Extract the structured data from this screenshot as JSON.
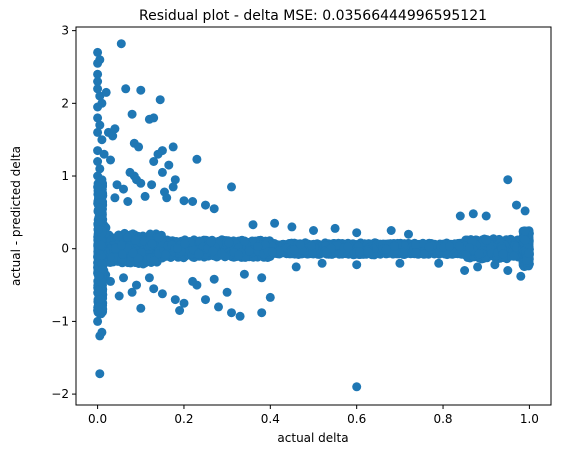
{
  "chart_data": {
    "type": "scatter",
    "title": "Residual plot - delta MSE: 0.03566444996595121",
    "xlabel": "actual delta",
    "ylabel": "actual - predicted delta",
    "xlim": [
      -0.05,
      1.05
    ],
    "ylim": [
      -2.15,
      3.05
    ],
    "xticks": [
      0.0,
      0.2,
      0.4,
      0.6,
      0.8,
      1.0
    ],
    "xtick_labels": [
      "0.0",
      "0.2",
      "0.4",
      "0.6",
      "0.8",
      "1.0"
    ],
    "yticks": [
      -2,
      -1,
      0,
      1,
      2,
      3
    ],
    "ytick_labels": [
      "−2",
      "−1",
      "0",
      "1",
      "2",
      "3"
    ],
    "grid": false,
    "color": "#1f77b4",
    "points": [
      {
        "x": 0.0,
        "y": 2.7
      },
      {
        "x": 0.0,
        "y": 2.55
      },
      {
        "x": 0.0,
        "y": 2.4
      },
      {
        "x": 0.005,
        "y": 2.6
      },
      {
        "x": 0.055,
        "y": 2.82
      },
      {
        "x": 0.0,
        "y": 2.3
      },
      {
        "x": 0.0,
        "y": 2.2
      },
      {
        "x": 0.005,
        "y": 2.1
      },
      {
        "x": 0.02,
        "y": 2.15
      },
      {
        "x": 0.01,
        "y": 2.0
      },
      {
        "x": 0.0,
        "y": 1.95
      },
      {
        "x": 0.0,
        "y": 1.8
      },
      {
        "x": 0.005,
        "y": 1.7
      },
      {
        "x": 0.0,
        "y": 1.6
      },
      {
        "x": 0.01,
        "y": 1.5
      },
      {
        "x": 0.025,
        "y": 1.6
      },
      {
        "x": 0.035,
        "y": 1.55
      },
      {
        "x": 0.0,
        "y": 1.35
      },
      {
        "x": 0.015,
        "y": 1.3
      },
      {
        "x": 0.0,
        "y": 1.2
      },
      {
        "x": 0.005,
        "y": 1.1
      },
      {
        "x": 0.0,
        "y": 1.0
      },
      {
        "x": 0.01,
        "y": 0.95
      },
      {
        "x": 0.0,
        "y": 0.85
      },
      {
        "x": 0.065,
        "y": 2.2
      },
      {
        "x": 0.1,
        "y": 2.18
      },
      {
        "x": 0.145,
        "y": 2.05
      },
      {
        "x": 0.08,
        "y": 1.85
      },
      {
        "x": 0.12,
        "y": 1.78
      },
      {
        "x": 0.13,
        "y": 1.8
      },
      {
        "x": 0.03,
        "y": 1.22
      },
      {
        "x": 0.04,
        "y": 1.65
      },
      {
        "x": 0.085,
        "y": 1.45
      },
      {
        "x": 0.095,
        "y": 1.4
      },
      {
        "x": 0.14,
        "y": 1.3
      },
      {
        "x": 0.15,
        "y": 1.35
      },
      {
        "x": 0.175,
        "y": 1.4
      },
      {
        "x": 0.13,
        "y": 1.2
      },
      {
        "x": 0.165,
        "y": 1.15
      },
      {
        "x": 0.23,
        "y": 1.23
      },
      {
        "x": 0.075,
        "y": 1.05
      },
      {
        "x": 0.085,
        "y": 1.0
      },
      {
        "x": 0.09,
        "y": 0.95
      },
      {
        "x": 0.1,
        "y": 0.9
      },
      {
        "x": 0.15,
        "y": 1.05
      },
      {
        "x": 0.18,
        "y": 0.95
      },
      {
        "x": 0.045,
        "y": 0.88
      },
      {
        "x": 0.06,
        "y": 0.82
      },
      {
        "x": 0.125,
        "y": 0.88
      },
      {
        "x": 0.155,
        "y": 0.78
      },
      {
        "x": 0.175,
        "y": 0.85
      },
      {
        "x": 0.31,
        "y": 0.85
      },
      {
        "x": 0.11,
        "y": 0.72
      },
      {
        "x": 0.16,
        "y": 0.7
      },
      {
        "x": 0.2,
        "y": 0.66
      },
      {
        "x": 0.22,
        "y": 0.65
      },
      {
        "x": 0.07,
        "y": 0.65
      },
      {
        "x": 0.04,
        "y": 0.7
      },
      {
        "x": 0.25,
        "y": 0.6
      },
      {
        "x": 0.27,
        "y": 0.55
      },
      {
        "x": 0.95,
        "y": 0.95
      },
      {
        "x": 0.97,
        "y": 0.6
      },
      {
        "x": 0.99,
        "y": 0.52
      },
      {
        "x": 0.87,
        "y": 0.48
      },
      {
        "x": 0.9,
        "y": 0.45
      },
      {
        "x": 0.84,
        "y": 0.45
      },
      {
        "x": 0.0,
        "y": -0.85
      },
      {
        "x": 0.0,
        "y": -1.0
      },
      {
        "x": 0.005,
        "y": -1.2
      },
      {
        "x": 0.01,
        "y": -1.15
      },
      {
        "x": 0.005,
        "y": -1.72
      },
      {
        "x": 0.6,
        "y": -1.9
      },
      {
        "x": 0.1,
        "y": -0.82
      },
      {
        "x": 0.05,
        "y": -0.65
      },
      {
        "x": 0.08,
        "y": -0.6
      },
      {
        "x": 0.09,
        "y": -0.5
      },
      {
        "x": 0.13,
        "y": -0.55
      },
      {
        "x": 0.15,
        "y": -0.62
      },
      {
        "x": 0.18,
        "y": -0.7
      },
      {
        "x": 0.19,
        "y": -0.85
      },
      {
        "x": 0.2,
        "y": -0.75
      },
      {
        "x": 0.25,
        "y": -0.7
      },
      {
        "x": 0.28,
        "y": -0.8
      },
      {
        "x": 0.31,
        "y": -0.88
      },
      {
        "x": 0.33,
        "y": -0.93
      },
      {
        "x": 0.38,
        "y": -0.88
      },
      {
        "x": 0.4,
        "y": -0.67
      },
      {
        "x": 0.3,
        "y": -0.6
      },
      {
        "x": 0.23,
        "y": -0.5
      },
      {
        "x": 0.03,
        "y": -0.45
      },
      {
        "x": 0.06,
        "y": -0.4
      },
      {
        "x": 0.12,
        "y": -0.4
      },
      {
        "x": 0.22,
        "y": -0.45
      },
      {
        "x": 0.27,
        "y": -0.42
      },
      {
        "x": 0.34,
        "y": -0.35
      },
      {
        "x": 0.38,
        "y": -0.4
      },
      {
        "x": 0.85,
        "y": -0.3
      },
      {
        "x": 0.88,
        "y": -0.25
      },
      {
        "x": 0.95,
        "y": -0.3
      },
      {
        "x": 0.98,
        "y": -0.38
      },
      {
        "x": 0.92,
        "y": -0.22
      },
      {
        "x": 0.79,
        "y": -0.2
      },
      {
        "x": 0.41,
        "y": 0.35
      },
      {
        "x": 0.45,
        "y": 0.3
      },
      {
        "x": 0.36,
        "y": 0.33
      },
      {
        "x": 0.5,
        "y": 0.25
      },
      {
        "x": 0.55,
        "y": 0.28
      },
      {
        "x": 0.6,
        "y": 0.22
      },
      {
        "x": 0.68,
        "y": 0.25
      },
      {
        "x": 0.72,
        "y": 0.2
      },
      {
        "x": 0.46,
        "y": -0.25
      },
      {
        "x": 0.52,
        "y": -0.2
      },
      {
        "x": 0.6,
        "y": -0.22
      },
      {
        "x": 0.7,
        "y": -0.2
      }
    ]
  }
}
